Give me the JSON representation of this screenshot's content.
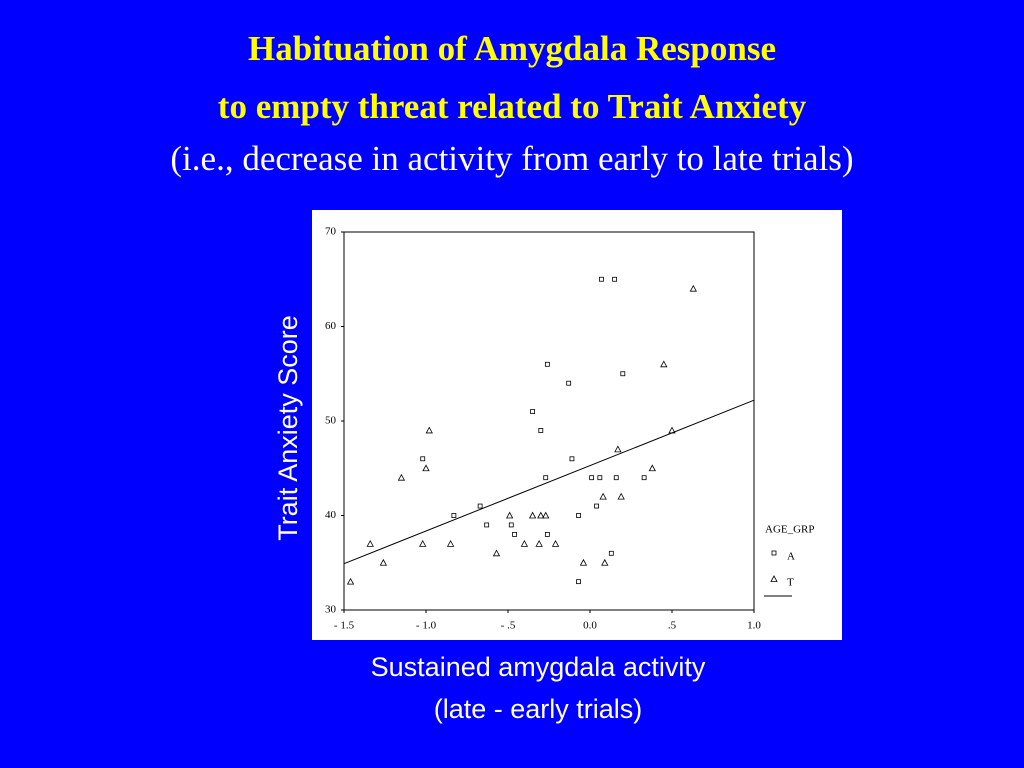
{
  "chart_data": {
    "type": "scatter",
    "title": [
      "Habituation of Amygdala Response",
      "to empty threat related to Trait Anxiety"
    ],
    "subtitle": "(i.e., decrease in activity from early to late trials)",
    "xlabel": [
      "Sustained amygdala activity",
      "(late - early trials)"
    ],
    "ylabel": "Trait Anxiety Score",
    "legend_title": "AGE_GRP",
    "xlim": [
      -1.5,
      1.0
    ],
    "ylim": [
      30,
      70
    ],
    "xticks": [
      {
        "value": -1.5,
        "label": "- 1.5"
      },
      {
        "value": -1.0,
        "label": "- 1.0"
      },
      {
        "value": -0.5,
        "label": "- .5"
      },
      {
        "value": 0,
        "label": "0.0"
      },
      {
        "value": 0.5,
        "label": ".5"
      },
      {
        "value": 1.0,
        "label": "1.0"
      }
    ],
    "yticks": [
      30,
      40,
      50,
      60,
      70
    ],
    "series": [
      {
        "name": "A",
        "marker": "square",
        "color": "#000000",
        "x": [
          0.07,
          0.15,
          -0.26,
          -0.13,
          0.2,
          -0.35,
          -0.3,
          -1.02,
          -0.11,
          0.01,
          -0.27,
          0.06,
          0.16,
          0.33,
          -0.67,
          0.04,
          -0.83,
          -0.07,
          -0.63,
          -0.48,
          -0.46,
          -0.26,
          0.13,
          -0.07
        ],
        "values": [
          65,
          65,
          56,
          54,
          55,
          51,
          49,
          46,
          46,
          44,
          44,
          44,
          44,
          44,
          41,
          41,
          40,
          40,
          39,
          39,
          38,
          38,
          36,
          33
        ]
      },
      {
        "name": "T",
        "marker": "triangle",
        "color": "#000000",
        "x": [
          0.63,
          0.45,
          -0.98,
          0.5,
          0.17,
          -1.0,
          0.38,
          -1.15,
          0.08,
          0.19,
          -0.49,
          -0.35,
          -0.3,
          -0.27,
          -1.34,
          -1.02,
          -0.85,
          -0.4,
          -0.31,
          -0.21,
          -0.57,
          -1.26,
          -0.04,
          0.09,
          -1.46
        ],
        "values": [
          64,
          56,
          49,
          49,
          47,
          45,
          45,
          44,
          42,
          42,
          40,
          40,
          40,
          40,
          37,
          37,
          37,
          37,
          37,
          37,
          36,
          35,
          35,
          35,
          33
        ]
      }
    ],
    "fit_line": {
      "x": [
        -1.5,
        1.0
      ],
      "y": [
        34.9,
        52.2
      ]
    }
  }
}
